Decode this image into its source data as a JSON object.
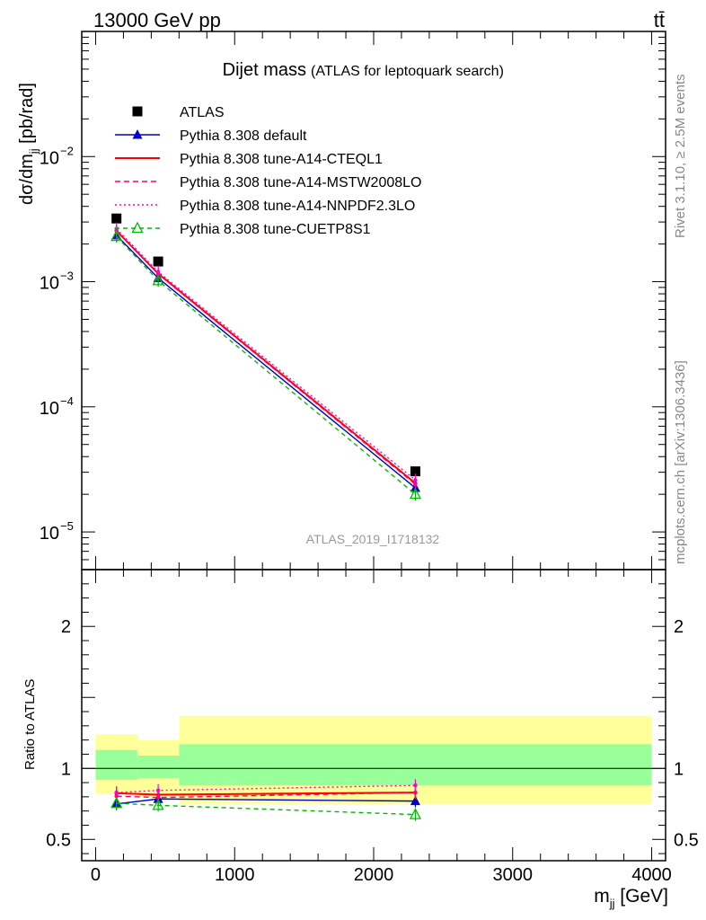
{
  "header": {
    "left": "13000 GeV pp",
    "right": "tt̄"
  },
  "side_labels": {
    "rivet": "Rivet 3.1.10, ≥ 2.5M events",
    "mcplots": "mcplots.cern.ch [arXiv:1306.3436]"
  },
  "watermark": "ATLAS_2019_I1718132",
  "colors": {
    "data": "#000000",
    "default": "#0000cc",
    "cteql1": "#ff0000",
    "mstw": "#ff0066",
    "nnpdf": "#ff00cc",
    "cuetp": "#00bb00",
    "band_inner": "#99ff99",
    "band_outer": "#ffff99"
  },
  "chart_data": [
    {
      "type": "scatter",
      "title": "Dijet mass",
      "subtitle": "(ATLAS for leptoquark search)",
      "ylabel": "dσ/dm_jj [pb/rad]",
      "yscale": "log",
      "ylim": [
        5e-06,
        0.1
      ],
      "xlim": [
        -100,
        4100
      ],
      "yticks": [
        1e-05,
        0.0001,
        0.001,
        0.01
      ],
      "ytick_labels": [
        "10",
        "10",
        "10",
        "10"
      ],
      "ytick_exps": [
        "−5",
        "−4",
        "−3",
        "−2"
      ],
      "x": [
        150,
        450,
        2300
      ],
      "series": [
        {
          "name": "ATLAS",
          "key": "data",
          "marker": "square",
          "dash": "",
          "values": [
            0.0032,
            0.00145,
            3.05e-05
          ]
        },
        {
          "name": "Pythia 8.308 default",
          "key": "default",
          "marker": "triangle",
          "dash": "",
          "values": [
            0.00235,
            0.00107,
            2.25e-05
          ]
        },
        {
          "name": "Pythia 8.308 tune-A14-CTEQL1",
          "key": "cteql1",
          "marker": "none",
          "dash": "",
          "values": [
            0.00255,
            0.00116,
            2.45e-05
          ]
        },
        {
          "name": "Pythia 8.308 tune-A14-MSTW2008LO",
          "key": "mstw",
          "marker": "none",
          "dash": "6,4",
          "values": [
            0.00255,
            0.00115,
            2.4e-05
          ]
        },
        {
          "name": "Pythia 8.308 tune-A14-NNPDF2.3LO",
          "key": "nnpdf",
          "marker": "none",
          "dash": "2,3",
          "values": [
            0.00265,
            0.0012,
            2.6e-05
          ]
        },
        {
          "name": "Pythia 8.308 tune-CUETP8S1",
          "key": "cuetp",
          "marker": "open-triangle",
          "dash": "5,4",
          "values": [
            0.0023,
            0.00102,
            2e-05
          ]
        }
      ]
    },
    {
      "type": "scatter",
      "ylabel": "Ratio to ATLAS",
      "xlabel": "m_jj [GeV]",
      "ylim": [
        0.35,
        2.4
      ],
      "xlim": [
        -100,
        4100
      ],
      "yticks": [
        0.5,
        1,
        2
      ],
      "ytick_labels": [
        "0.5",
        "1",
        "2"
      ],
      "xticks": [
        0,
        1000,
        2000,
        3000,
        4000
      ],
      "xtick_labels": [
        "0",
        "1000",
        "2000",
        "3000",
        "4000"
      ],
      "x": [
        150,
        450,
        2300
      ],
      "bins": [
        {
          "xlo": 0,
          "xhi": 300,
          "inner": [
            0.92,
            1.13
          ],
          "outer": [
            0.82,
            1.24
          ]
        },
        {
          "xlo": 300,
          "xhi": 600,
          "inner": [
            0.93,
            1.09
          ],
          "outer": [
            0.8,
            1.2
          ]
        },
        {
          "xlo": 600,
          "xhi": 4000,
          "inner": [
            0.88,
            1.17
          ],
          "outer": [
            0.75,
            1.37
          ]
        }
      ],
      "series": [
        {
          "name": "Pythia 8.308 default",
          "key": "default",
          "marker": "triangle",
          "dash": "",
          "values": [
            0.75,
            0.785,
            0.77
          ]
        },
        {
          "name": "Pythia 8.308 tune-A14-CTEQL1",
          "key": "cteql1",
          "marker": "none",
          "dash": "",
          "values": [
            0.825,
            0.815,
            0.83
          ]
        },
        {
          "name": "Pythia 8.308 tune-A14-MSTW2008LO",
          "key": "mstw",
          "marker": "none",
          "dash": "6,4",
          "values": [
            0.805,
            0.795,
            0.83
          ]
        },
        {
          "name": "Pythia 8.308 tune-A14-NNPDF2.3LO",
          "key": "nnpdf",
          "marker": "none",
          "dash": "2,3",
          "values": [
            0.83,
            0.845,
            0.88
          ]
        },
        {
          "name": "Pythia 8.308 tune-CUETP8S1",
          "key": "cuetp",
          "marker": "open-triangle",
          "dash": "5,4",
          "values": [
            0.755,
            0.74,
            0.675
          ]
        }
      ]
    }
  ]
}
